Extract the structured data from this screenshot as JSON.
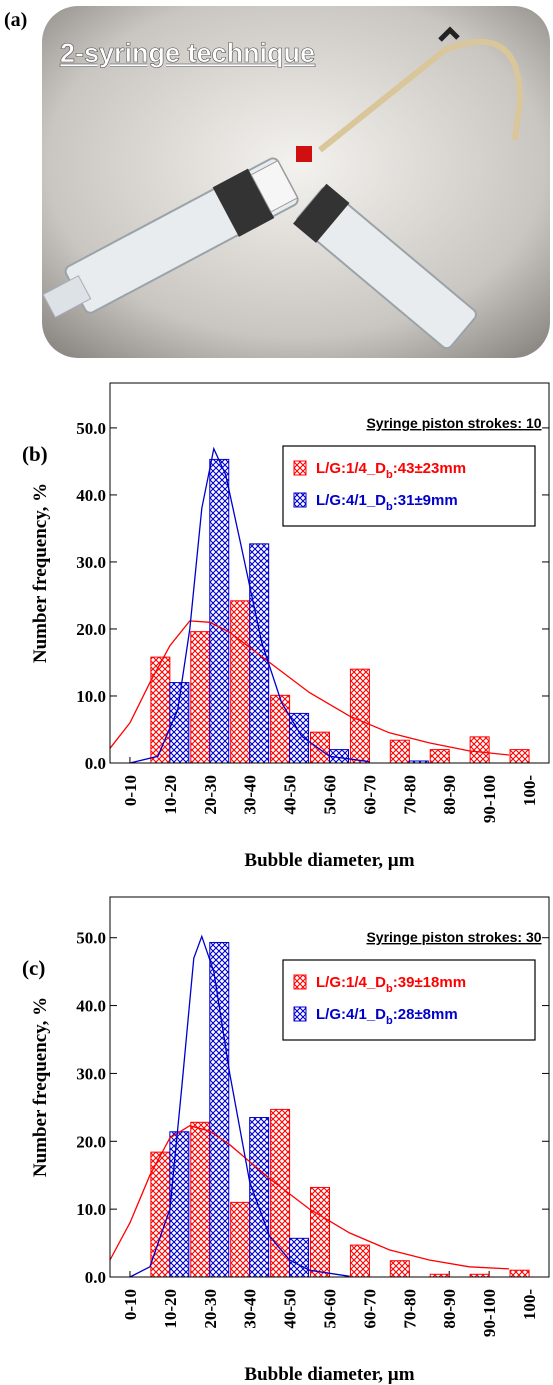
{
  "panel_a": {
    "label": "(a)",
    "caption": "2-syringe technique"
  },
  "chart_data": [
    {
      "type": "bar",
      "panel_label": "(b)",
      "annotation": "Syringe piston strokes: 10",
      "xlabel": "Bubble diameter, µm",
      "ylabel": "Number frequency, %",
      "categories": [
        "0-10",
        "10-20",
        "20-30",
        "30-40",
        "40-50",
        "50-60",
        "60-70",
        "70-80",
        "80-90",
        "90-100",
        "100-"
      ],
      "xlim": [
        0,
        110
      ],
      "ylim": [
        0,
        56.7
      ],
      "yticks": [
        {
          "value": 0,
          "label": "0.0"
        },
        {
          "value": 10,
          "label": "10.0"
        },
        {
          "value": 20,
          "label": "20.0"
        },
        {
          "value": 30,
          "label": "30.0"
        },
        {
          "value": 40,
          "label": "40.0"
        },
        {
          "value": 50,
          "label": "50.0"
        }
      ],
      "series": [
        {
          "name": "L/G:1/4_D",
          "name_sub": "b",
          "name_suffix": ":43±23mm",
          "color": "#ff0000",
          "values": [
            0,
            15.8,
            19.6,
            24.2,
            10.1,
            4.6,
            14.0,
            3.4,
            2.0,
            3.9,
            2.0
          ],
          "fit_x": [
            0,
            5,
            10,
            15,
            20,
            25,
            30,
            40,
            50,
            60,
            70,
            80,
            90,
            100
          ],
          "fit_values": [
            2.2,
            6,
            12,
            17.5,
            21.2,
            21,
            19.5,
            15,
            10.5,
            7,
            4.5,
            3,
            1.8,
            1.2
          ]
        },
        {
          "name": "L/G:4/1_D",
          "name_sub": "b",
          "name_suffix": ":31±9mm",
          "color": "#0000cc",
          "values": [
            0,
            12.0,
            45.3,
            32.7,
            7.4,
            2.0,
            0,
            0.3,
            0,
            0,
            0
          ],
          "fit_x": [
            5,
            12,
            17,
            20,
            23,
            26,
            29,
            33,
            38,
            43,
            48,
            55,
            65
          ],
          "fit_values": [
            0,
            1,
            8,
            20,
            38,
            46.9,
            43,
            32,
            18,
            9,
            4,
            1,
            0.2
          ]
        }
      ]
    },
    {
      "type": "bar",
      "panel_label": "(c)",
      "annotation": "Syringe piston strokes: 30",
      "xlabel": "Bubble diameter, µm",
      "ylabel": "Number frequency, %",
      "categories": [
        "0-10",
        "10-20",
        "20-30",
        "30-40",
        "40-50",
        "50-60",
        "60-70",
        "70-80",
        "80-90",
        "90-100",
        "100-"
      ],
      "xlim": [
        0,
        110
      ],
      "ylim": [
        0,
        56
      ],
      "yticks": [
        {
          "value": 0,
          "label": "0.0"
        },
        {
          "value": 10,
          "label": "10.0"
        },
        {
          "value": 20,
          "label": "20.0"
        },
        {
          "value": 30,
          "label": "30.0"
        },
        {
          "value": 40,
          "label": "40.0"
        },
        {
          "value": 50,
          "label": "50.0"
        }
      ],
      "series": [
        {
          "name": "L/G:1/4_D",
          "name_sub": "b",
          "name_suffix": ":39±18mm",
          "color": "#ff0000",
          "values": [
            0,
            18.4,
            22.8,
            11.0,
            24.7,
            13.2,
            4.7,
            2.4,
            0.4,
            0.4,
            1.0
          ],
          "fit_x": [
            0,
            5,
            10,
            15,
            20,
            25,
            30,
            40,
            50,
            60,
            70,
            80,
            90,
            100
          ],
          "fit_values": [
            2.5,
            8,
            15,
            20.5,
            22.3,
            21.5,
            19.5,
            14.5,
            10,
            6.5,
            4,
            2.5,
            1.5,
            1.2
          ]
        },
        {
          "name": "L/G:4/1_D",
          "name_sub": "b",
          "name_suffix": ":28±8mm",
          "color": "#0000cc",
          "values": [
            0,
            21.4,
            49.3,
            23.5,
            5.7,
            0,
            0,
            0,
            0,
            0,
            0
          ],
          "fit_x": [
            5,
            10,
            15,
            18,
            21,
            23,
            26,
            30,
            35,
            40,
            45,
            50,
            60
          ],
          "fit_values": [
            0,
            1.5,
            10,
            28,
            47,
            50.2,
            45,
            30,
            14,
            6,
            2.5,
            1,
            0.1
          ]
        }
      ]
    }
  ]
}
